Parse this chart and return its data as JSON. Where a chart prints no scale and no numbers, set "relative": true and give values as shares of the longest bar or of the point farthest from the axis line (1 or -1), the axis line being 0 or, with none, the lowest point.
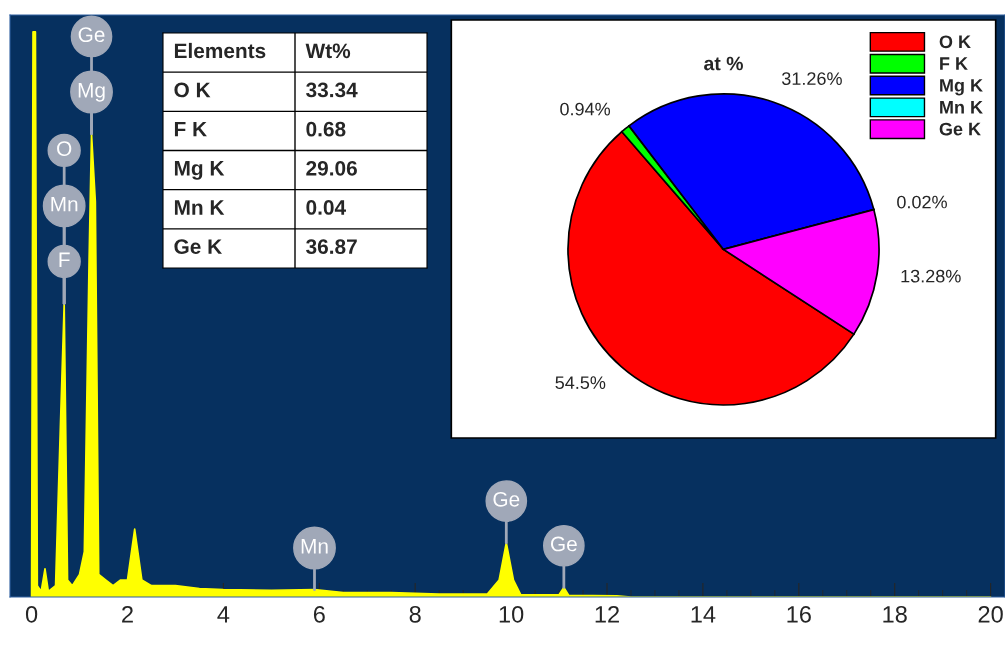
{
  "chart_data": [
    {
      "type": "area",
      "relative": true,
      "color": "#ffff00",
      "x": [
        0.0,
        0.03,
        0.08,
        0.12,
        0.2,
        0.28,
        0.35,
        0.5,
        0.6,
        0.68,
        0.75,
        0.85,
        1.0,
        1.1,
        1.2,
        1.25,
        1.33,
        1.4,
        1.55,
        1.7,
        1.85,
        2.0,
        2.15,
        2.3,
        2.5,
        3.0,
        3.5,
        4.0,
        5.0,
        5.9,
        6.5,
        7.5,
        8.5,
        9.5,
        9.75,
        9.9,
        10.05,
        10.2,
        11.0,
        11.1,
        11.2,
        12.2,
        12.5,
        20.0
      ],
      "values": [
        0,
        1.0,
        1.0,
        0.02,
        0.01,
        0.05,
        0.01,
        0.02,
        0.3,
        0.52,
        0.03,
        0.02,
        0.04,
        0.08,
        0.6,
        0.82,
        0.7,
        0.04,
        0.03,
        0.02,
        0.03,
        0.03,
        0.12,
        0.03,
        0.02,
        0.02,
        0.015,
        0.013,
        0.012,
        0.013,
        0.008,
        0.008,
        0.005,
        0.005,
        0.03,
        0.096,
        0.03,
        0.004,
        0.004,
        0.017,
        0.003,
        0.002,
        0,
        0
      ],
      "xlim": [
        -0.45,
        20.3
      ],
      "xticks": [
        0,
        2,
        4,
        6,
        8,
        10,
        12,
        14,
        16,
        18,
        20
      ],
      "annotations": [
        {
          "text": "Mg",
          "x": 1.25,
          "y": 0.82
        },
        {
          "text": "Ge",
          "x": 1.25,
          "y": 0.82
        },
        {
          "text": "F",
          "x": 0.68,
          "y": 0.52
        },
        {
          "text": "Mn",
          "x": 0.68,
          "y": 0.52
        },
        {
          "text": "O",
          "x": 0.68,
          "y": 0.52
        },
        {
          "text": "Mn",
          "x": 5.9,
          "y": 0.013
        },
        {
          "text": "Ge",
          "x": 9.9,
          "y": 0.096
        },
        {
          "text": "Ge",
          "x": 11.1,
          "y": 0.017
        }
      ]
    },
    {
      "type": "other",
      "annotations": [
        "Elements",
        "Wt%",
        "O K",
        "33.34",
        "F K",
        "0.68",
        "Mg K",
        "29.06",
        "Mn K",
        "0.04",
        "Ge K",
        "36.87"
      ]
    },
    {
      "type": "pie",
      "title": "at %",
      "categories": [
        "O K",
        "F K",
        "Mg K",
        "Mn K",
        "Ge K"
      ],
      "values": [
        54.5,
        0.94,
        31.26,
        0.02,
        13.28
      ],
      "colors": [
        "#ff0000",
        "#00ff00",
        "#0000ff",
        "#00ffff",
        "#ff00ff"
      ],
      "value_labels": [
        "54.5%",
        "0.94%",
        "31.26%",
        "0.02%",
        "13.28%"
      ],
      "legend": "top right"
    }
  ]
}
